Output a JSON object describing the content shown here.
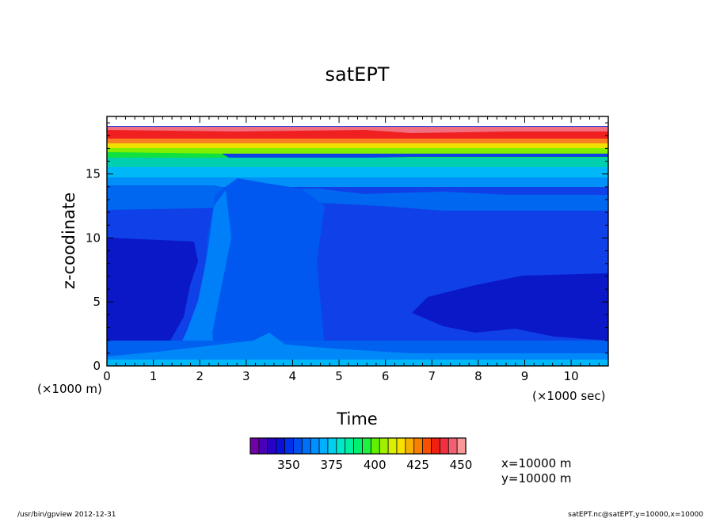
{
  "chart_data": {
    "type": "heatmap",
    "title": "satEPT",
    "xlabel": "Time",
    "ylabel": "z-coodinate",
    "x_unit": "(×1000 sec)",
    "y_unit": "(×1000 m)",
    "xlim": [
      0,
      10.8
    ],
    "ylim": [
      0,
      19.5
    ],
    "x_ticks": [
      "0",
      "1",
      "2",
      "3",
      "4",
      "5",
      "6",
      "7",
      "8",
      "9",
      "10"
    ],
    "y_ticks": [
      "0",
      "5",
      "10",
      "15"
    ],
    "colorbar": {
      "min": 325,
      "max": 450,
      "step": 5,
      "labels": [
        "350",
        "375",
        "400",
        "425",
        "450"
      ],
      "colors": [
        "#7000a8",
        "#4a00b8",
        "#2800c8",
        "#0a10d8",
        "#0030e8",
        "#0050f0",
        "#0070f8",
        "#0090ff",
        "#00b0ff",
        "#00d0f0",
        "#00e8c8",
        "#00f0a0",
        "#00f070",
        "#20f040",
        "#60f000",
        "#a0f000",
        "#d8f000",
        "#f8e000",
        "#f8b000",
        "#f88000",
        "#f85000",
        "#f02010",
        "#f03040",
        "#f06070",
        "#f89898"
      ]
    },
    "annotations": [
      "x=10000  m",
      "y=10000  m"
    ]
  },
  "footer": {
    "left": "/usr/bin/gpview   2012-12-31",
    "right": "satEPT.nc@satEPT,y=10000,x=10000"
  }
}
